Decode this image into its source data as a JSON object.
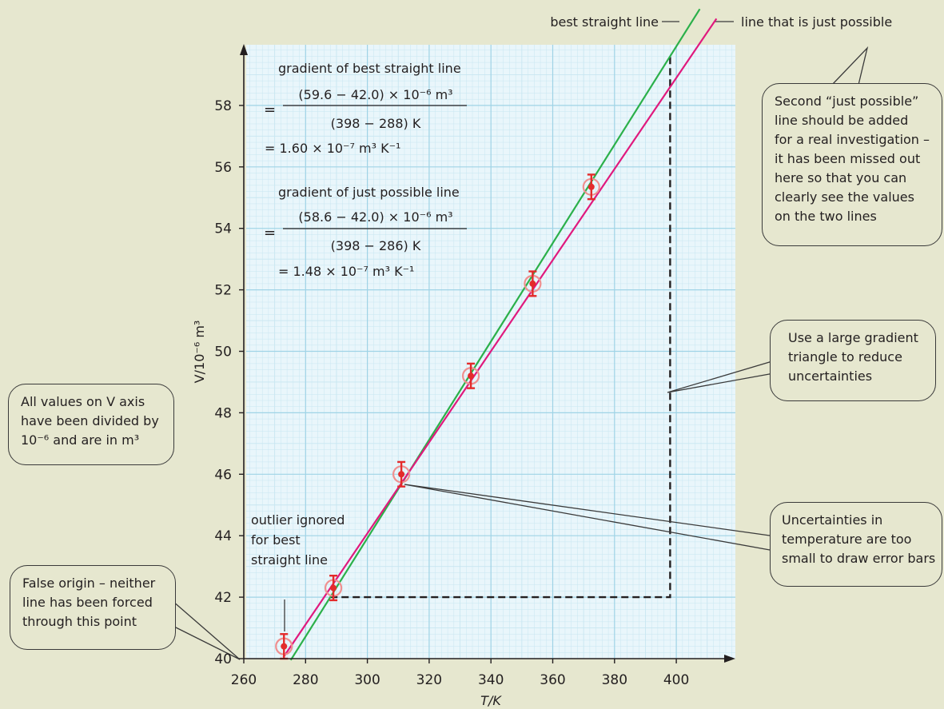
{
  "chart_data": {
    "type": "scatter",
    "xlabel": "T/K",
    "ylabel": "V/10⁻⁶ m³",
    "xlim": [
      260,
      420
    ],
    "ylim": [
      40,
      60
    ],
    "x_ticks": [
      "260",
      "280",
      "300",
      "320",
      "340",
      "360",
      "380",
      "400"
    ],
    "y_ticks": [
      "40",
      "42",
      "44",
      "46",
      "48",
      "50",
      "52",
      "54",
      "56",
      "58"
    ],
    "points": [
      {
        "x": 273,
        "y": 40.4,
        "err": 0.4
      },
      {
        "x": 289,
        "y": 42.3,
        "err": 0.4
      },
      {
        "x": 311,
        "y": 46.0,
        "err": 0.4
      },
      {
        "x": 333.5,
        "y": 49.2,
        "err": 0.4
      },
      {
        "x": 353.5,
        "y": 52.2,
        "err": 0.4
      },
      {
        "x": 372.5,
        "y": 55.35,
        "err": 0.4
      }
    ],
    "lines": [
      {
        "name": "best straight line",
        "color": "#2bb04a",
        "from": [
          288,
          42.0
        ],
        "to": [
          398,
          59.6
        ]
      },
      {
        "name": "line that is just possible",
        "color": "#e0197d",
        "from": [
          286,
          42.0
        ],
        "to": [
          398,
          58.6
        ]
      }
    ],
    "triangle": {
      "x0": 288,
      "y0": 42.0,
      "x1": 398,
      "y1": 59.6
    },
    "grid": true,
    "colors": {
      "grid": "#9fd3e6",
      "grid_minor": "#c8e6f1",
      "plot_bg": "#e9f6fb",
      "points": "#e32b2b",
      "axis": "#231f20"
    }
  },
  "labels": {
    "best_line": "best straight line",
    "possible_line": "line that is just possible",
    "outlier": [
      "outlier ignored",
      "for best",
      "straight line"
    ]
  },
  "gradient_text": {
    "best_title": "gradient of best straight line",
    "best_num": "(59.6 − 42.0) × 10⁻⁶ m³",
    "best_den": "(398 − 288) K",
    "best_result": "= 1.60 × 10⁻⁷ m³ K⁻¹",
    "possible_title": "gradient of just possible line",
    "possible_num": "(58.6 − 42.0) × 10⁻⁶ m³",
    "possible_den": "(398 − 286) K",
    "possible_result": "= 1.48 × 10⁻⁷ m³ K⁻¹",
    "equals": "="
  },
  "callouts": {
    "second_line": [
      "Second “just possible”",
      "line  should be added",
      "for a real investigation –",
      "it has been missed out",
      "here so that you can",
      "clearly see the values",
      "on the two lines"
    ],
    "large_gradient": [
      "Use a large gradient",
      "triangle to reduce",
      "uncertainties"
    ],
    "v_axis": [
      "All values on V axis",
      "have been divided by",
      "10⁻⁶ and are in m³"
    ],
    "uncertainties": [
      "Uncertainties in",
      "temperature are too",
      "small to draw error bars"
    ],
    "false_origin": [
      "False origin – neither",
      "line has been forced",
      "through this point"
    ]
  }
}
